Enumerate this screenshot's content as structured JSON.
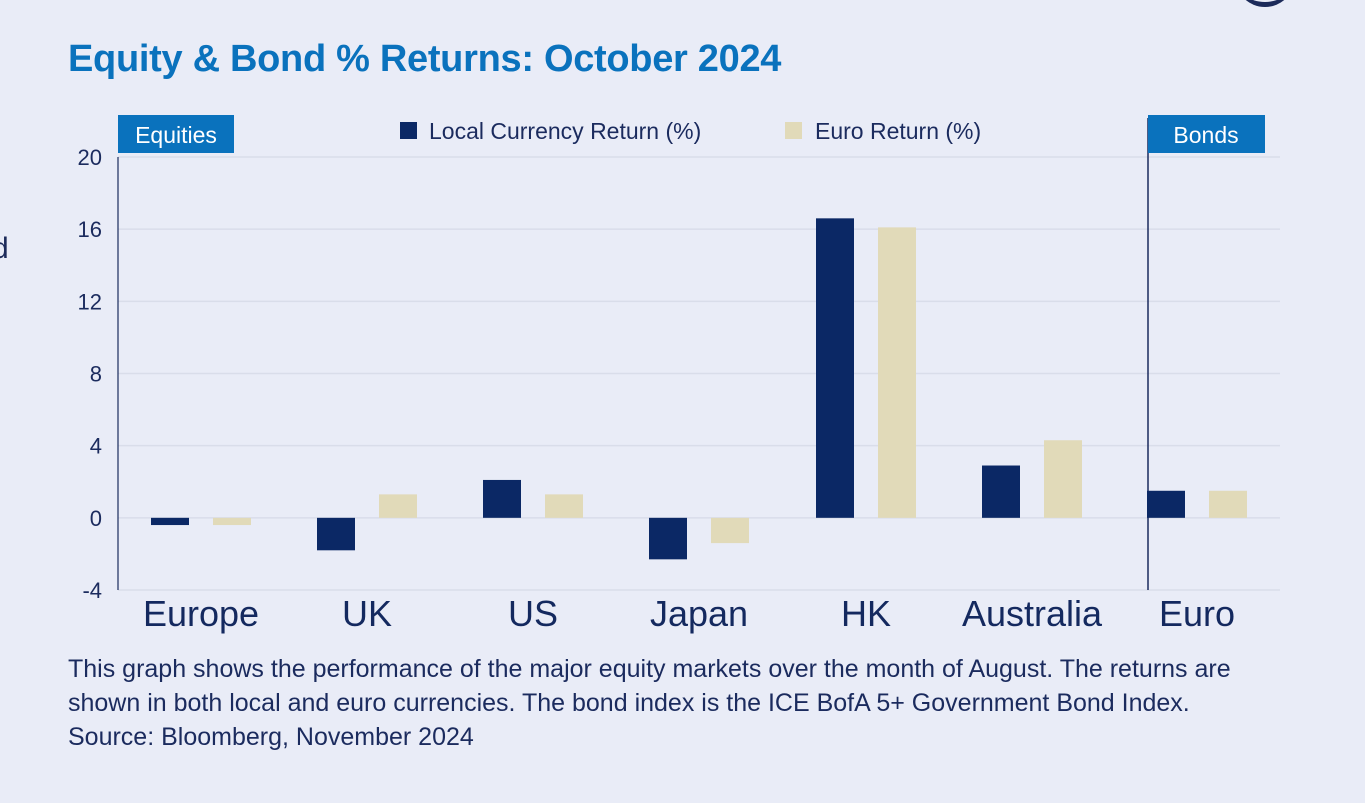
{
  "title": "Equity & Bond % Returns: October 2024",
  "edge_text": "d",
  "caption": "This graph shows the performance of the major equity markets over the month of August. The returns are shown in both local and euro currencies. The bond index is the ICE BofA 5+ Government Bond Index. Source: Bloomberg, November 2024",
  "colors": {
    "local": "#0b2865",
    "euro": "#e1dab9",
    "accent": "#0a72bd",
    "grid": "#d9ddea"
  },
  "chart_data": {
    "type": "bar",
    "categories": [
      "Europe",
      "UK",
      "US",
      "Japan",
      "HK",
      "Australia",
      "Euro"
    ],
    "series": [
      {
        "name": "Local Currency Return (%)",
        "values": [
          -0.4,
          -1.8,
          2.1,
          -2.3,
          16.6,
          2.9,
          1.5
        ]
      },
      {
        "name": "Euro Return (%)",
        "values": [
          -0.4,
          1.3,
          1.3,
          -1.4,
          16.1,
          4.3,
          1.5
        ]
      }
    ],
    "yticks": [
      "20",
      "16",
      "12",
      "8",
      "4",
      "0",
      "-4"
    ],
    "ylim": [
      -4,
      20
    ],
    "group_labels": {
      "equities": "Equities",
      "bonds": "Bonds"
    },
    "legend_position": "top-center",
    "grid": true
  }
}
